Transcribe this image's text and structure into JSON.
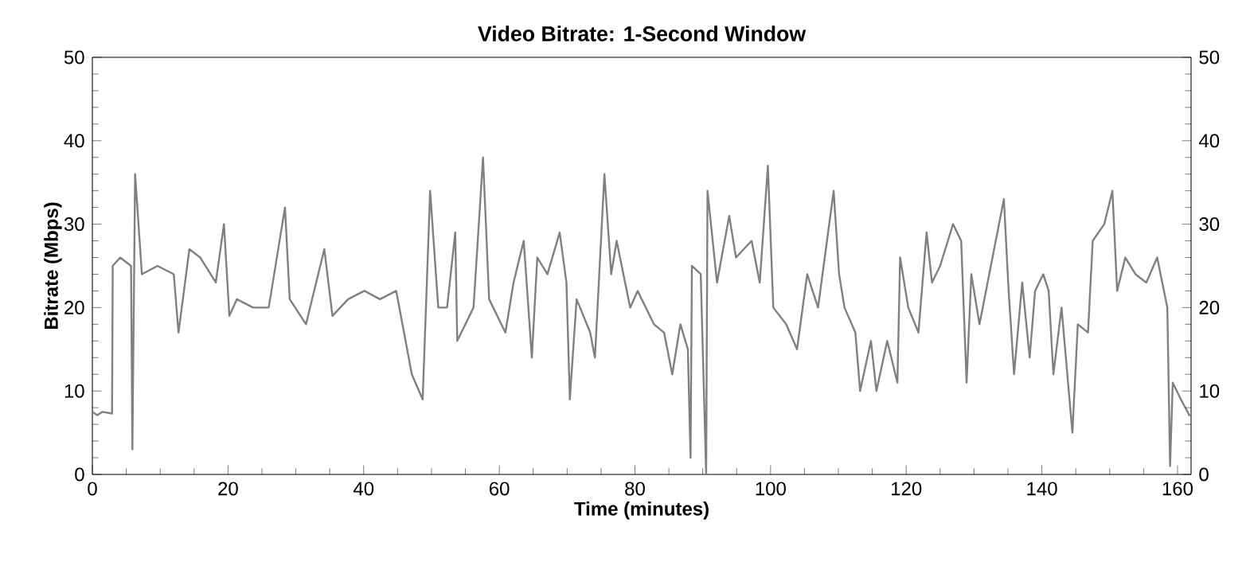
{
  "chart_data": {
    "type": "line",
    "title": "Video Bitrate: 1-Second Window",
    "xlabel": "Time (minutes)",
    "ylabel": "Bitrate (Mbps)",
    "x": [
      0,
      0.7,
      1.5,
      2.9,
      3.0,
      4.1,
      5.7,
      5.9,
      6.3,
      7.3,
      9.6,
      12,
      12.7,
      14.3,
      15.9,
      18.2,
      19.4,
      20.2,
      21.3,
      23.7,
      26,
      28.4,
      29.1,
      31.5,
      34.2,
      35.4,
      37.7,
      40.1,
      42.4,
      44.8,
      47.1,
      48.7,
      49.8,
      51,
      52.3,
      53.5,
      53.8,
      56.2,
      57.6,
      58.5,
      60.9,
      62.1,
      63.6,
      64.8,
      65.6,
      67.1,
      68.9,
      69.9,
      70.4,
      71.4,
      73.4,
      74.1,
      75.5,
      76.5,
      77.3,
      79.3,
      80.4,
      82.8,
      84.3,
      85.5,
      86.7,
      87.8,
      88.2,
      88.4,
      89.7,
      90.5,
      90.7,
      92.1,
      93.9,
      94.9,
      97.2,
      98.4,
      99.6,
      100.4,
      102.3,
      103.9,
      105.4,
      107,
      109.3,
      110.1,
      110.9,
      112.5,
      113.2,
      114.8,
      115.6,
      117.2,
      118.7,
      119.1,
      120.3,
      121.8,
      123,
      123.8,
      125,
      126.9,
      128.1,
      128.9,
      129.6,
      130.8,
      132,
      133.2,
      134.4,
      135.1,
      135.9,
      137.1,
      138.2,
      139,
      140.2,
      141,
      141.7,
      142.9,
      144.5,
      145.3,
      146.8,
      147.5,
      149.2,
      150.4,
      151.1,
      152.3,
      153.8,
      155.4,
      157,
      158.5,
      158.9,
      159.3,
      160.5,
      161.8
    ],
    "series": [
      {
        "color": "#808080",
        "values": [
          7.5,
          7.1,
          7.5,
          7.3,
          25,
          26,
          25,
          3,
          36,
          24,
          25,
          24,
          17,
          27,
          26,
          23,
          30,
          19,
          21,
          20,
          20,
          32,
          21,
          18,
          27,
          19,
          21,
          22,
          21,
          22,
          12,
          9,
          34,
          20,
          20,
          29,
          16,
          20,
          38,
          21,
          17,
          23,
          28,
          14,
          26,
          24,
          29,
          23,
          9,
          21,
          17,
          14,
          36,
          24,
          28,
          20,
          22,
          18,
          17,
          12,
          18,
          15,
          2,
          25,
          24,
          0,
          34,
          23,
          31,
          26,
          28,
          23,
          37,
          20,
          18,
          15,
          24,
          20,
          34,
          24,
          20,
          17,
          10,
          16,
          10,
          16,
          11,
          26,
          20,
          17,
          29,
          23,
          25,
          30,
          28,
          11,
          24,
          18,
          23,
          28,
          33,
          22,
          12,
          23,
          14,
          22,
          24,
          22,
          12,
          20,
          5,
          18,
          17,
          28,
          30,
          34,
          22,
          26,
          24,
          23,
          26,
          20,
          1,
          11,
          9,
          7
        ]
      }
    ],
    "xlim": [
      0,
      162
    ],
    "xticks": [
      0,
      20,
      40,
      60,
      80,
      100,
      120,
      140,
      160
    ],
    "ylim": [
      0,
      50
    ],
    "yticks": [
      0,
      10,
      20,
      30,
      40,
      50
    ],
    "y2lim": [
      0,
      50
    ],
    "y2ticks": [
      0,
      10,
      20,
      30,
      40,
      50
    ],
    "grid": false,
    "marker": "none",
    "line_style": "solid"
  }
}
